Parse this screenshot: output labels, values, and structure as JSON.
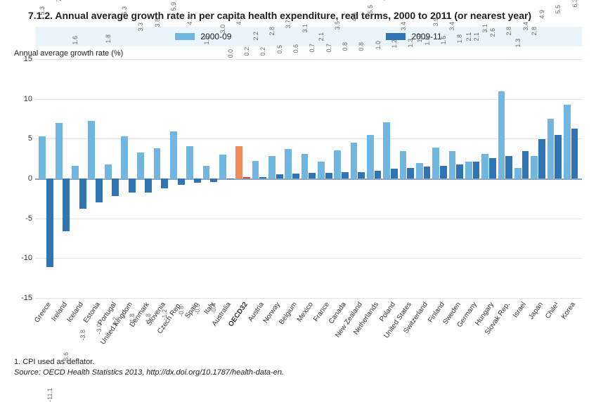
{
  "title": "7.1.2.  Annual average growth rate in per capita health expenditure, real terms, 2000 to 2011 (or nearest year)",
  "y_axis_label": "Annual average growth rate (%)",
  "legend": {
    "series_a": "2000-09",
    "series_b": "2009-11"
  },
  "colors": {
    "series_a": "#6fb7e0",
    "series_b": "#2f74b5",
    "highlight_a": "#f08b5c",
    "highlight_b": "#d9442a",
    "legend_bg": "#eaf4fb",
    "grid": "#d9e4ec",
    "axis": "#8aa8bf"
  },
  "chart": {
    "type": "grouped-bar",
    "ylim": [
      -15,
      15
    ],
    "ytick_step": 5,
    "yticks": [
      "15",
      "10",
      "5",
      "0",
      "-5",
      "-10",
      "-15"
    ],
    "countries": [
      {
        "name": "Greece",
        "a": 5.3,
        "b": -11.1
      },
      {
        "name": "Ireland",
        "a": 7.0,
        "b": -6.6
      },
      {
        "name": "Iceland",
        "a": 1.6,
        "b": -3.8
      },
      {
        "name": "Estonia",
        "a": 7.2,
        "b": -3.0
      },
      {
        "name": "Portugal",
        "a": 1.8,
        "b": -2.2
      },
      {
        "name": "United Kingdom",
        "a": 5.3,
        "b": -1.8
      },
      {
        "name": "Denmark",
        "a": 3.3,
        "b": -1.8
      },
      {
        "name": "Slovenia",
        "a": 3.8,
        "b": -1.2
      },
      {
        "name": "Czech Rep.",
        "a": 5.9,
        "b": -0.8
      },
      {
        "name": "Spain",
        "a": 4.1,
        "b": -0.5
      },
      {
        "name": "Italy",
        "a": 1.6,
        "b": -0.4
      },
      {
        "name": "Australia",
        "a": 3.0,
        "b": 0.0
      },
      {
        "name": "OECD32",
        "a": 4.1,
        "b": 0.2,
        "highlight": true
      },
      {
        "name": "Austria",
        "a": 2.2,
        "b": 0.2
      },
      {
        "name": "Norway",
        "a": 2.8,
        "b": 0.5
      },
      {
        "name": "Belgium",
        "a": 3.7,
        "b": 0.6
      },
      {
        "name": "Mexico",
        "a": 3.1,
        "b": 0.7
      },
      {
        "name": "France",
        "a": 2.1,
        "b": 0.7
      },
      {
        "name": "Canada",
        "a": 3.5,
        "b": 0.8
      },
      {
        "name": "New Zealand",
        "a": 4.5,
        "b": 0.8
      },
      {
        "name": "Netherlands",
        "a": 5.5,
        "b": 1.0
      },
      {
        "name": "Poland",
        "a": 7.1,
        "b": 1.2
      },
      {
        "name": "United States",
        "a": 3.4,
        "b": 1.3
      },
      {
        "name": "Switzerland",
        "a": 1.9,
        "b": 1.5
      },
      {
        "name": "Finland",
        "a": 3.9,
        "b": 1.6
      },
      {
        "name": "Sweden",
        "a": 3.4,
        "b": 1.8
      },
      {
        "name": "Germany",
        "a": 2.1,
        "b": 2.1
      },
      {
        "name": "Hungary",
        "a": 3.1,
        "b": 2.6
      },
      {
        "name": "Slovak Rep.",
        "a": 10.9,
        "b": 2.8
      },
      {
        "name": "Israel",
        "a": 1.3,
        "b": 3.4
      },
      {
        "name": "Japan",
        "a": 2.8,
        "b": 4.9
      },
      {
        "name": "Chile¹",
        "a": 7.5,
        "b": 5.5
      },
      {
        "name": "Korea",
        "a": 9.3,
        "b": 6.3
      }
    ]
  },
  "footnote1": "1.  CPI used as deflator.",
  "source": "Source:  OECD Health Statistics 2013, http://dx.doi.org/10.1787/health-data-en."
}
